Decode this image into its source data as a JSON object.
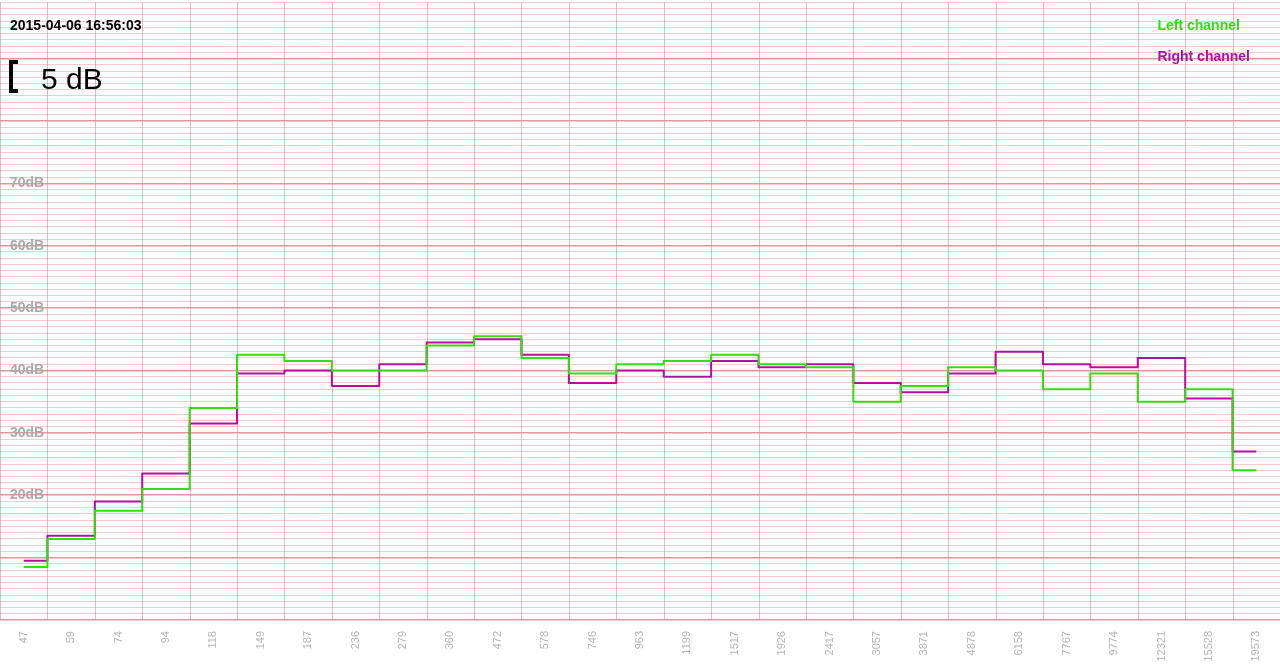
{
  "chart_data": {
    "type": "step",
    "annotations": [
      "2015-04-06 16:56:03",
      "5 dB"
    ],
    "categories": [
      "47",
      "59",
      "74",
      "94",
      "118",
      "149",
      "187",
      "236",
      "279",
      "360",
      "472",
      "578",
      "746",
      "963",
      "1199",
      "1517",
      "1926",
      "2417",
      "3057",
      "3871",
      "4878",
      "6158",
      "7767",
      "9774",
      "12321",
      "15528",
      "19573"
    ],
    "series": [
      {
        "name": "Left channel",
        "color": "#33dd11",
        "values": [
          8.5,
          13,
          17.5,
          21,
          34,
          42.5,
          41.5,
          40,
          40,
          44,
          45.5,
          42,
          39.5,
          41,
          41.5,
          42.5,
          41,
          40.5,
          35,
          37.5,
          40.5,
          40,
          37,
          39.5,
          35,
          37,
          24
        ]
      },
      {
        "name": "Right channel",
        "color": "#b0129f",
        "values": [
          9.5,
          13.5,
          19,
          23.5,
          31.5,
          39.5,
          40,
          37.5,
          41,
          44.5,
          45,
          42.5,
          38,
          40,
          39,
          41.5,
          40.5,
          41,
          38,
          36.5,
          39.5,
          43,
          41,
          40.5,
          42,
          35.5,
          27
        ]
      }
    ],
    "ylim": [
      0,
      99
    ],
    "yticks": [
      {
        "value": 0,
        "label": null
      },
      {
        "value": 1,
        "label": null
      },
      {
        "value": 2,
        "label": null
      },
      {
        "value": 3,
        "label": null
      },
      {
        "value": 4,
        "label": null
      },
      {
        "value": 5,
        "label": null
      },
      {
        "value": 6,
        "label": null
      },
      {
        "value": 7,
        "label": null
      },
      {
        "value": 8,
        "label": null
      },
      {
        "value": 9,
        "label": null
      },
      {
        "value": 10,
        "label": null
      },
      {
        "value": 11,
        "label": null
      },
      {
        "value": 12,
        "label": null
      },
      {
        "value": 13,
        "label": null
      },
      {
        "value": 14,
        "label": null
      },
      {
        "value": 15,
        "label": null
      },
      {
        "value": 16,
        "label": null
      },
      {
        "value": 17,
        "label": null
      },
      {
        "value": 18,
        "label": null
      },
      {
        "value": 19,
        "label": null
      },
      {
        "value": 20,
        "label": "20dB"
      },
      {
        "value": 21,
        "label": null
      },
      {
        "value": 22,
        "label": null
      },
      {
        "value": 23,
        "label": null
      },
      {
        "value": 24,
        "label": null
      },
      {
        "value": 25,
        "label": null
      },
      {
        "value": 26,
        "label": null
      },
      {
        "value": 27,
        "label": null
      },
      {
        "value": 28,
        "label": null
      },
      {
        "value": 29,
        "label": null
      },
      {
        "value": 30,
        "label": "30dB"
      },
      {
        "value": 31,
        "label": null
      },
      {
        "value": 32,
        "label": null
      },
      {
        "value": 33,
        "label": null
      },
      {
        "value": 34,
        "label": null
      },
      {
        "value": 35,
        "label": null
      },
      {
        "value": 36,
        "label": null
      },
      {
        "value": 37,
        "label": null
      },
      {
        "value": 38,
        "label": null
      },
      {
        "value": 39,
        "label": null
      },
      {
        "value": 40,
        "label": "40dB"
      },
      {
        "value": 41,
        "label": null
      },
      {
        "value": 42,
        "label": null
      },
      {
        "value": 43,
        "label": null
      },
      {
        "value": 44,
        "label": null
      },
      {
        "value": 45,
        "label": null
      },
      {
        "value": 46,
        "label": null
      },
      {
        "value": 47,
        "label": null
      },
      {
        "value": 48,
        "label": null
      },
      {
        "value": 49,
        "label": null
      },
      {
        "value": 50,
        "label": "50dB"
      },
      {
        "value": 51,
        "label": null
      },
      {
        "value": 52,
        "label": null
      },
      {
        "value": 53,
        "label": null
      },
      {
        "value": 54,
        "label": null
      },
      {
        "value": 55,
        "label": null
      },
      {
        "value": 56,
        "label": null
      },
      {
        "value": 57,
        "label": null
      },
      {
        "value": 58,
        "label": null
      },
      {
        "value": 59,
        "label": null
      },
      {
        "value": 60,
        "label": "60dB"
      },
      {
        "value": 61,
        "label": null
      },
      {
        "value": 62,
        "label": null
      },
      {
        "value": 63,
        "label": null
      },
      {
        "value": 64,
        "label": null
      },
      {
        "value": 65,
        "label": null
      },
      {
        "value": 66,
        "label": null
      },
      {
        "value": 67,
        "label": null
      },
      {
        "value": 68,
        "label": null
      },
      {
        "value": 69,
        "label": null
      },
      {
        "value": 70,
        "label": "70dB"
      },
      {
        "value": 71,
        "label": null
      },
      {
        "value": 72,
        "label": null
      },
      {
        "value": 73,
        "label": null
      },
      {
        "value": 74,
        "label": null
      },
      {
        "value": 75,
        "label": null
      },
      {
        "value": 76,
        "label": null
      },
      {
        "value": 77,
        "label": null
      },
      {
        "value": 78,
        "label": null
      },
      {
        "value": 79,
        "label": null
      },
      {
        "value": 80,
        "label": null
      },
      {
        "value": 81,
        "label": null
      },
      {
        "value": 82,
        "label": null
      },
      {
        "value": 83,
        "label": null
      },
      {
        "value": 84,
        "label": null
      },
      {
        "value": 85,
        "label": null
      },
      {
        "value": 86,
        "label": null
      },
      {
        "value": 87,
        "label": null
      },
      {
        "value": 88,
        "label": null
      },
      {
        "value": 89,
        "label": null
      },
      {
        "value": 90,
        "label": null
      },
      {
        "value": 91,
        "label": null
      },
      {
        "value": 92,
        "label": null
      },
      {
        "value": 93,
        "label": null
      },
      {
        "value": 94,
        "label": null
      },
      {
        "value": 95,
        "label": null
      },
      {
        "value": 96,
        "label": null
      },
      {
        "value": 97,
        "label": null
      },
      {
        "value": 98,
        "label": null
      },
      {
        "value": 99,
        "label": null
      }
    ],
    "grid": true,
    "legend": "top right",
    "marker": "none",
    "line_style": "solid"
  }
}
